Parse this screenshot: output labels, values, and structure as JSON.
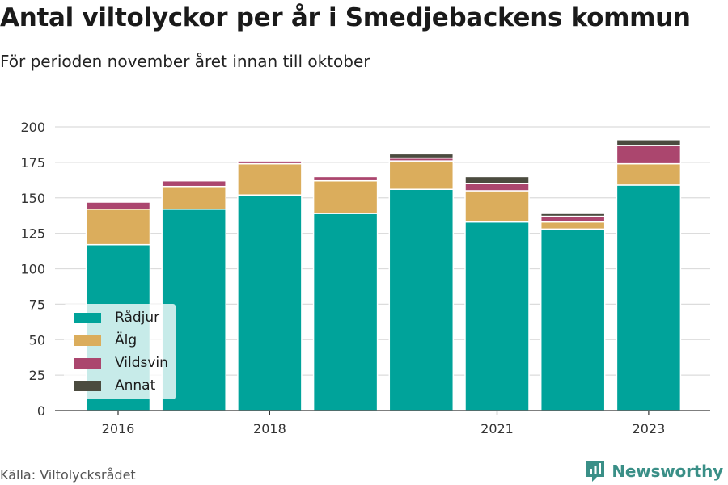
{
  "title": "Antal viltolyckor per år i Smedjebackens kommun",
  "subtitle": "För perioden november året innan till oktober",
  "source": "Källa: Viltolycksrådet",
  "brand": {
    "name": "Newsworthy",
    "icon": "newsworthy-chart-logo-icon",
    "color": "#3a8f87"
  },
  "chart_data": {
    "type": "bar",
    "stacked": true,
    "categories": [
      "2016",
      "2017",
      "2018",
      "2019",
      "2020",
      "2021",
      "2022",
      "2023"
    ],
    "x_tick_labels": [
      "2016",
      "",
      "2018",
      "",
      "",
      "2021",
      "",
      "2023"
    ],
    "series": [
      {
        "name": "Rådjur",
        "color": "#00a39a",
        "values": [
          117,
          142,
          152,
          139,
          156,
          133,
          128,
          159
        ]
      },
      {
        "name": "Älg",
        "color": "#dbad5c",
        "values": [
          25,
          16,
          22,
          23,
          20,
          22,
          5,
          15
        ]
      },
      {
        "name": "Vildsvin",
        "color": "#ab466e",
        "values": [
          5,
          4,
          2,
          3,
          2,
          5,
          4,
          13
        ]
      },
      {
        "name": "Annat",
        "color": "#4b4b3f",
        "values": [
          0,
          0,
          0,
          0,
          3,
          5,
          2,
          4
        ]
      }
    ],
    "ylim": [
      0,
      200
    ],
    "yticks": [
      0,
      25,
      50,
      75,
      100,
      125,
      150,
      175,
      200
    ],
    "grid": true,
    "legend_position": "bottom-left"
  }
}
